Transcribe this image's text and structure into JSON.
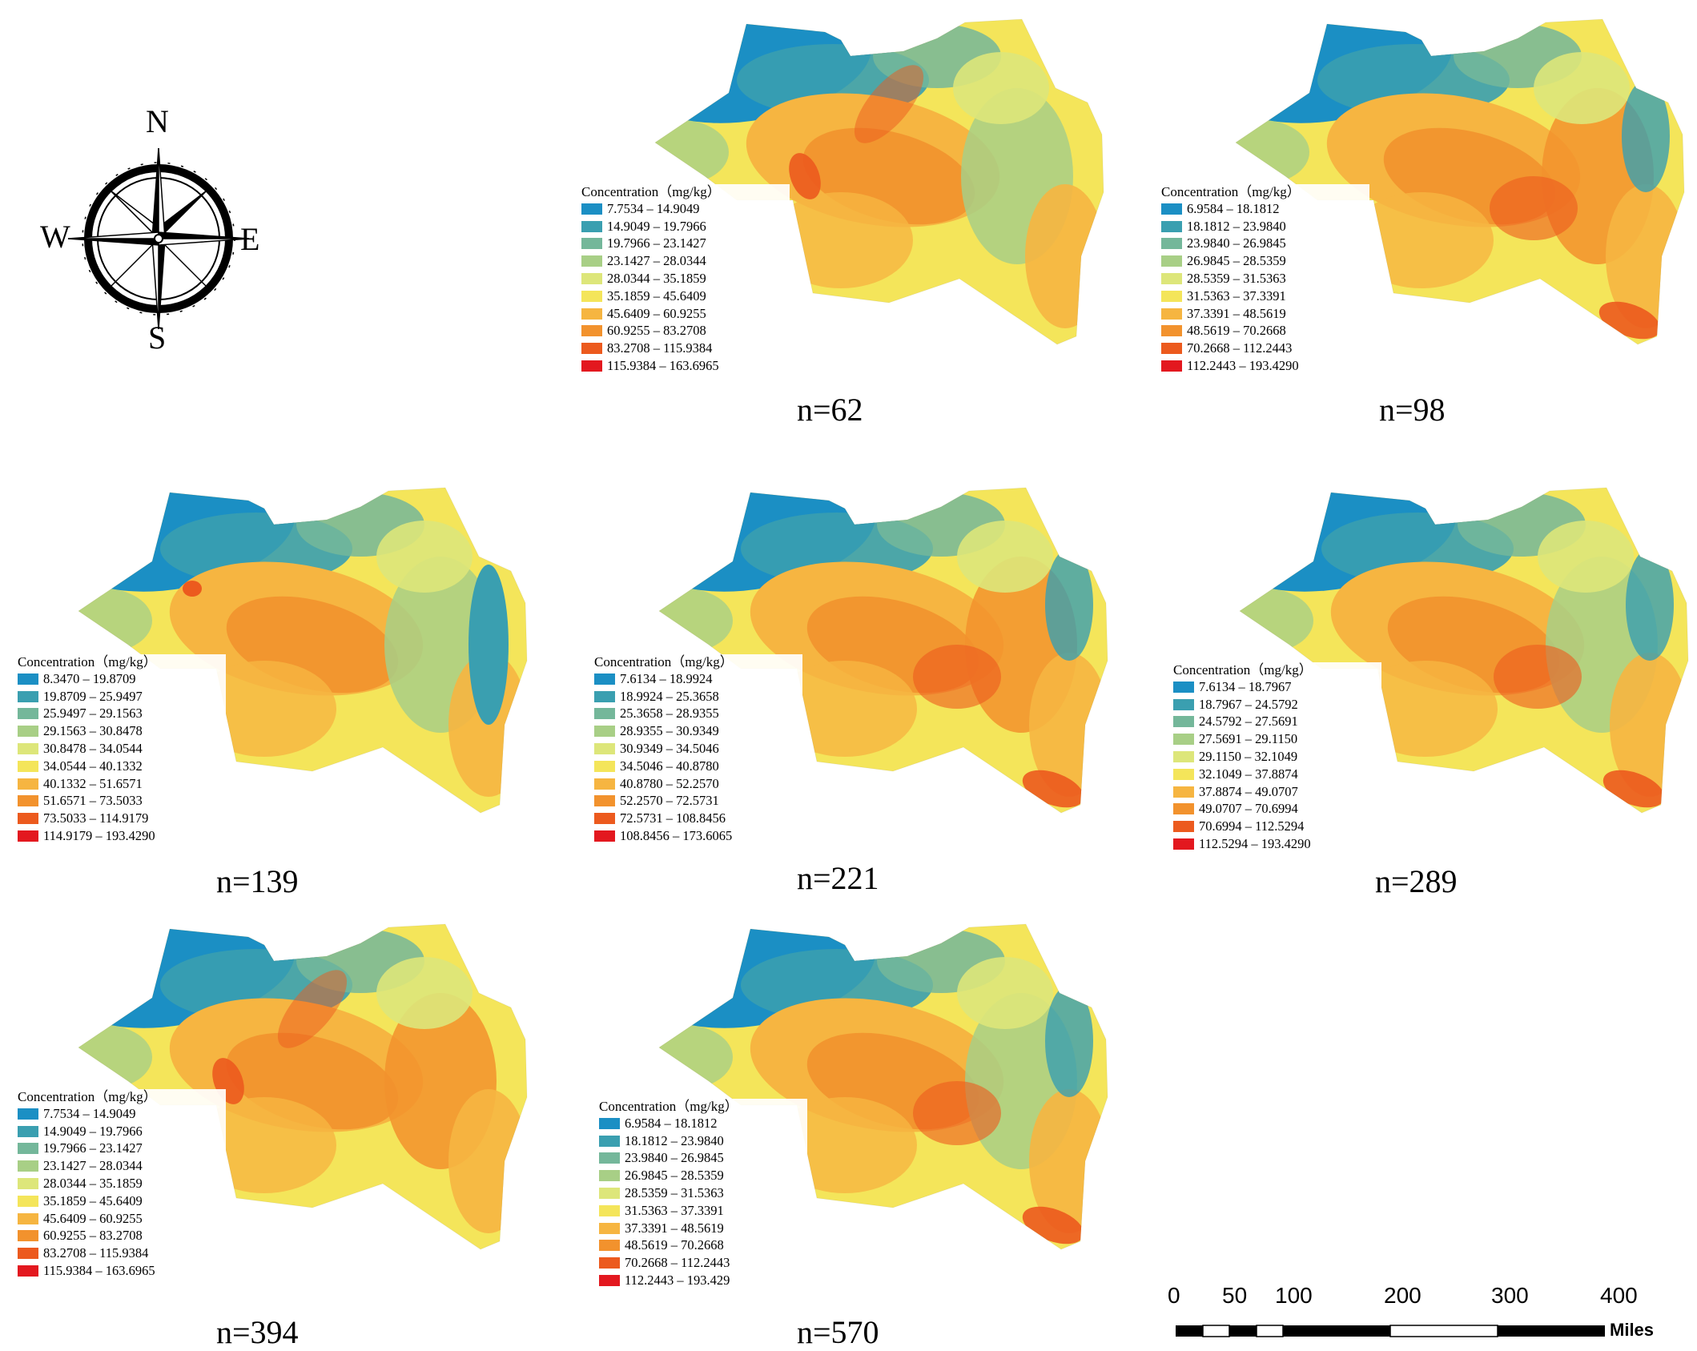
{
  "compass": {
    "north": "N",
    "south": "S",
    "east": "E",
    "west": "W"
  },
  "scalebar": {
    "ticks": [
      "0",
      "50",
      "100",
      "200",
      "300",
      "400"
    ],
    "unit": "Miles"
  },
  "palette": [
    "#1b8fc4",
    "#3a9fb0",
    "#74b79a",
    "#a8cf86",
    "#dde67a",
    "#f4e55a",
    "#f6b541",
    "#f2922d",
    "#ec5a1e",
    "#e3181f"
  ],
  "panels": [
    {
      "label": "n=62",
      "legend_title": "Concentration（mg/kg）",
      "ranges": [
        "7.7534 – 14.9049",
        "14.9049 – 19.7966",
        "19.7966 – 23.1427",
        "23.1427 – 28.0344",
        "28.0344 – 35.1859",
        "35.1859 – 45.6409",
        "45.6409 – 60.9255",
        "60.9255 – 83.2708",
        "83.2708 – 115.9384",
        "115.9384 – 163.6965"
      ]
    },
    {
      "label": "n=98",
      "legend_title": "Concentration（mg/kg）",
      "ranges": [
        "6.9584 – 18.1812",
        "18.1812 – 23.9840",
        "23.9840 – 26.9845",
        "26.9845 – 28.5359",
        "28.5359 – 31.5363",
        "31.5363 – 37.3391",
        "37.3391 – 48.5619",
        "48.5619 – 70.2668",
        "70.2668 – 112.2443",
        "112.2443 – 193.4290"
      ]
    },
    {
      "label": "n=139",
      "legend_title": "Concentration（mg/kg）",
      "ranges": [
        "8.3470 – 19.8709",
        "19.8709 – 25.9497",
        "25.9497 – 29.1563",
        "29.1563 – 30.8478",
        "30.8478 – 34.0544",
        "34.0544 – 40.1332",
        "40.1332 – 51.6571",
        "51.6571 – 73.5033",
        "73.5033 – 114.9179",
        "114.9179 – 193.4290"
      ]
    },
    {
      "label": "n=221",
      "legend_title": "Concentration（mg/kg）",
      "ranges": [
        "7.6134 – 18.9924",
        "18.9924 – 25.3658",
        "25.3658 – 28.9355",
        "28.9355 – 30.9349",
        "30.9349 – 34.5046",
        "34.5046 – 40.8780",
        "40.8780 – 52.2570",
        "52.2570 – 72.5731",
        "72.5731 – 108.8456",
        "108.8456 – 173.6065"
      ]
    },
    {
      "label": "n=289",
      "legend_title": "Concentration（mg/kg）",
      "ranges": [
        "7.6134 – 18.7967",
        "18.7967 – 24.5792",
        "24.5792 – 27.5691",
        "27.5691 – 29.1150",
        "29.1150 – 32.1049",
        "32.1049 – 37.8874",
        "37.8874 – 49.0707",
        "49.0707 – 70.6994",
        "70.6994 – 112.5294",
        "112.5294 – 193.4290"
      ]
    },
    {
      "label": "n=394",
      "legend_title": "Concentration（mg/kg）",
      "ranges": [
        "7.7534 – 14.9049",
        "14.9049 – 19.7966",
        "19.7966 – 23.1427",
        "23.1427 – 28.0344",
        "28.0344 – 35.1859",
        "35.1859 – 45.6409",
        "45.6409 – 60.9255",
        "60.9255 – 83.2708",
        "83.2708 – 115.9384",
        "115.9384 – 163.6965"
      ]
    },
    {
      "label": "n=570",
      "legend_title": "Concentration（mg/kg）",
      "ranges": [
        "6.9584 – 18.1812",
        "18.1812 – 23.9840",
        "23.9840 – 26.9845",
        "26.9845 – 28.5359",
        "28.5359 – 31.5363",
        "31.5363 – 37.3391",
        "37.3391 – 48.5619",
        "48.5619 – 70.2668",
        "70.2668 – 112.2443",
        "112.2443 – 193.429"
      ]
    }
  ]
}
